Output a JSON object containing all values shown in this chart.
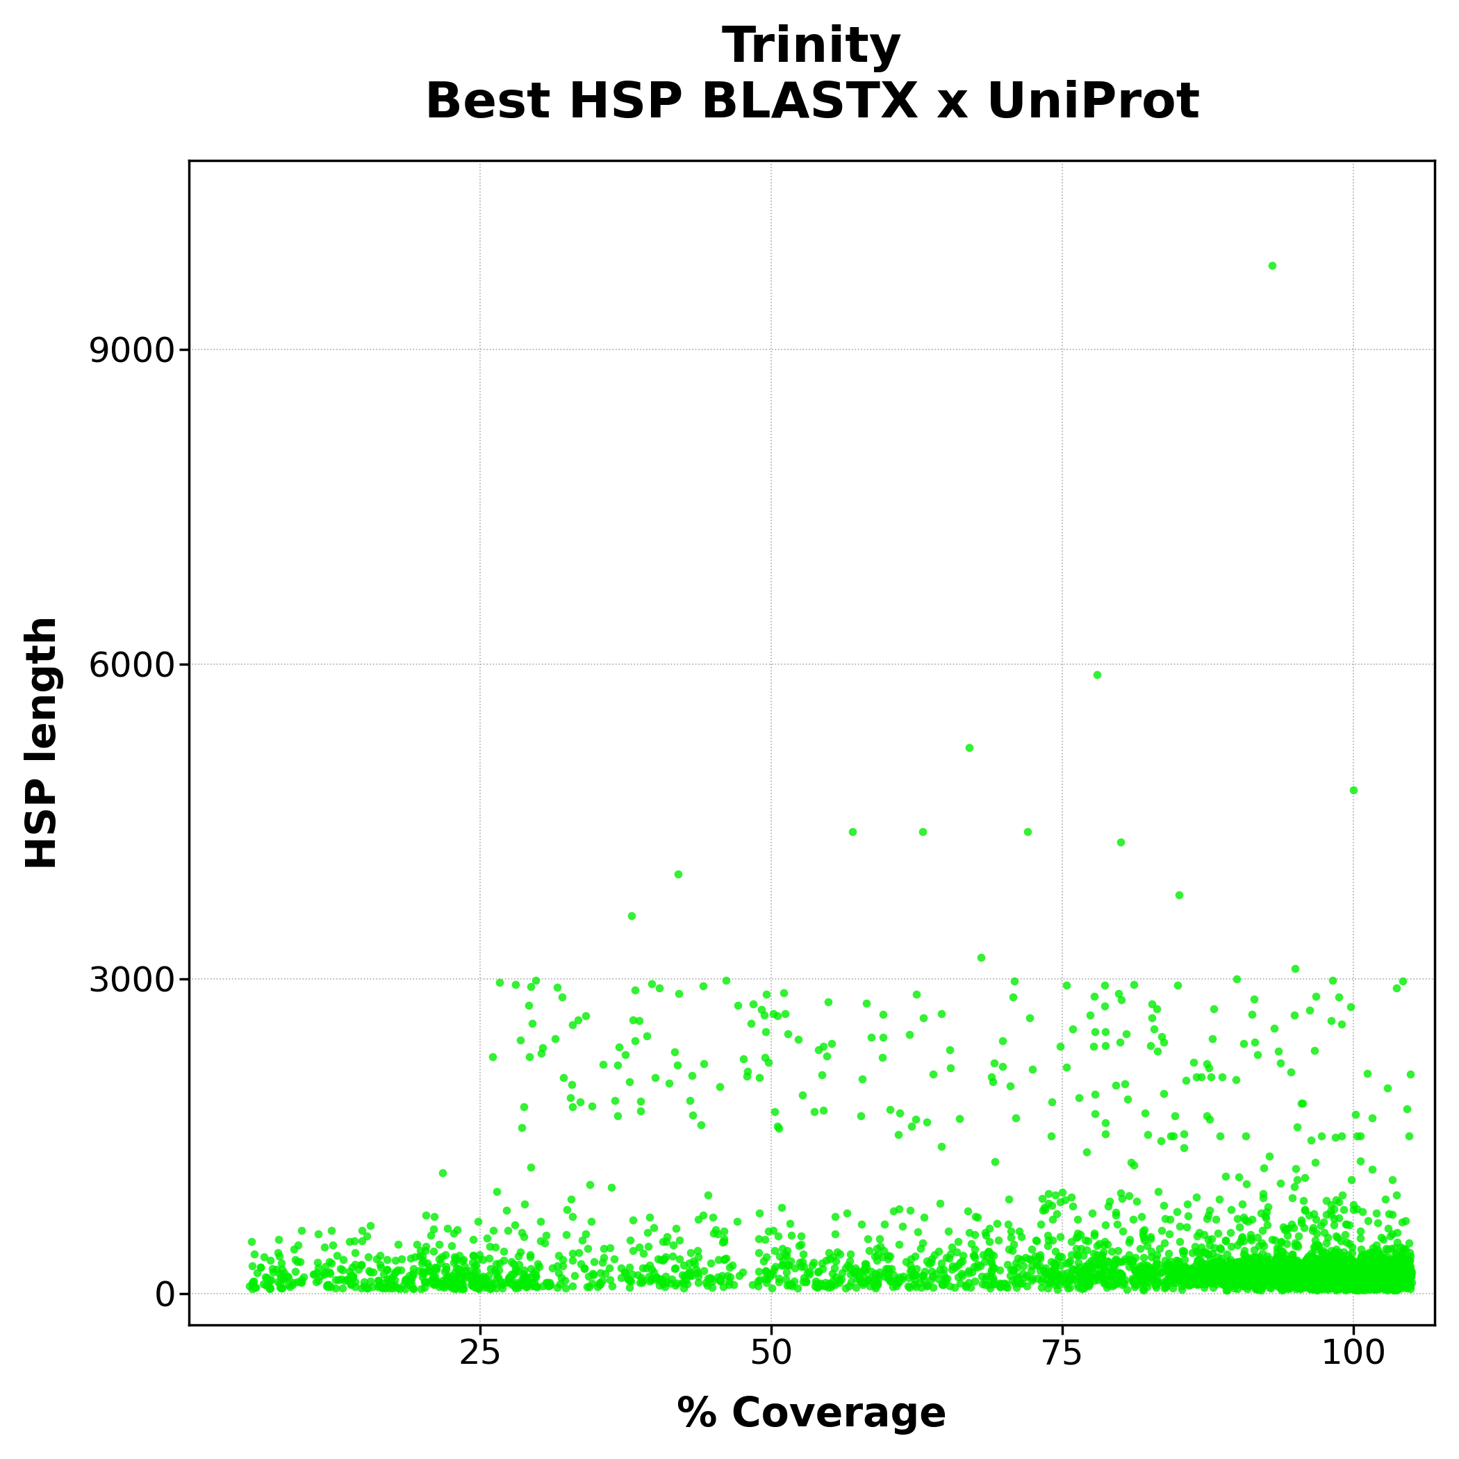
{
  "title_line1": "Trinity",
  "title_line2": "Best HSP BLASTX x UniProt",
  "xlabel": "% Coverage",
  "ylabel": "HSP length",
  "xlim": [
    0,
    107
  ],
  "ylim": [
    -300,
    10800
  ],
  "xticks": [
    25,
    50,
    75,
    100
  ],
  "yticks": [
    0,
    3000,
    6000,
    9000
  ],
  "dot_color": "#00ee00",
  "contour_color": "#0a1a2a",
  "background_color": "#ffffff",
  "title_fontsize": 52,
  "axis_label_fontsize": 42,
  "tick_fontsize": 36,
  "seed": 42,
  "n_points": 4000
}
